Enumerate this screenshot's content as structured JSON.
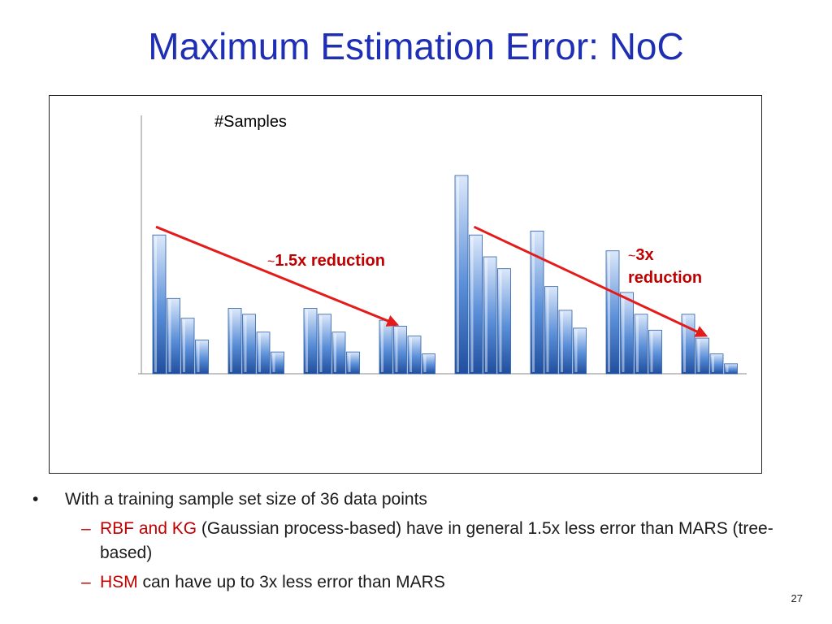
{
  "slide": {
    "title": "Maximum Estimation Error: NoC",
    "bullet_main": "With a training sample set size of 36 data points",
    "sub1_highlight": "RBF and KG",
    "sub1_text": " (Gaussian process-based) have in general 1.5x less error than MARS (tree-based)",
    "sub2_highlight": "HSM",
    "sub2_text": " can have up to 3x less error than MARS",
    "page_number": "27",
    "bullet_glyph": "•",
    "dash_glyph": "–"
  },
  "chart_data": {
    "type": "bar",
    "title": "#Samples",
    "xlabel": "",
    "ylabel": "",
    "ylim": [
      0,
      1
    ],
    "grid": false,
    "legend": "none",
    "groups": [
      [
        0.7,
        0.38,
        0.28,
        0.17
      ],
      [
        0.33,
        0.3,
        0.21,
        0.11
      ],
      [
        0.33,
        0.3,
        0.21,
        0.11
      ],
      [
        0.27,
        0.24,
        0.19,
        0.1
      ],
      [
        1.0,
        0.7,
        0.59,
        0.53
      ],
      [
        0.72,
        0.44,
        0.32,
        0.23
      ],
      [
        0.62,
        0.41,
        0.3,
        0.22
      ],
      [
        0.3,
        0.18,
        0.1,
        0.05
      ]
    ],
    "annotations": [
      {
        "prefix": "~",
        "text": "1.5x reduction"
      },
      {
        "prefix": "~",
        "text": "3x reduction"
      }
    ],
    "colors": {
      "bar_dark": "#1F4E9E",
      "bar_mid": "#5B8FD8",
      "bar_light": "#DCE8FA",
      "arrow": "#E41B1B",
      "axis": "#888888"
    }
  }
}
